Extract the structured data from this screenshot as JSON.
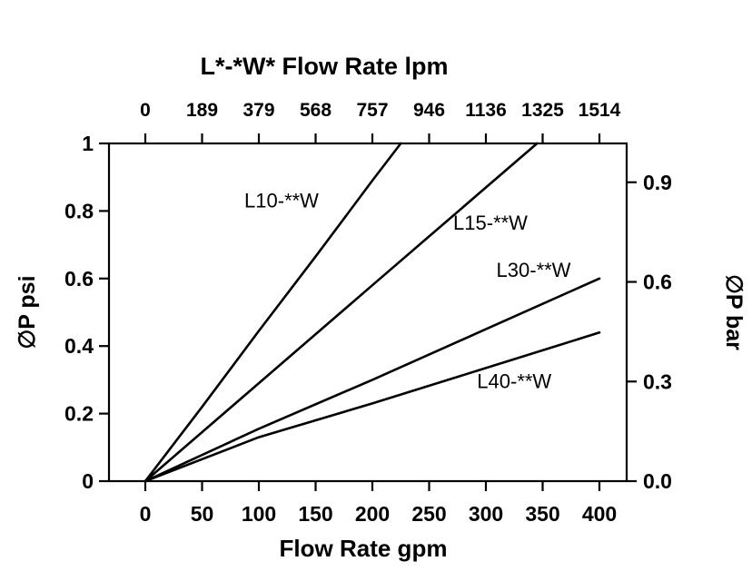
{
  "page": {
    "background": "#ffffff"
  },
  "chart_data": {
    "type": "line",
    "title": "L*-*W* Flow Rate lpm",
    "line_color": "#000000",
    "grid": false,
    "top_axis": {
      "unit": "lpm",
      "ticks": [
        "0",
        "189",
        "379",
        "568",
        "757",
        "946",
        "1136",
        "1325",
        "1514"
      ]
    },
    "bottom_axis": {
      "label": "Flow Rate gpm",
      "min": 0,
      "max": 400,
      "ticks": [
        "0",
        "50",
        "100",
        "150",
        "200",
        "250",
        "300",
        "350",
        "400"
      ],
      "tick_values": [
        0,
        50,
        100,
        150,
        200,
        250,
        300,
        350,
        400
      ]
    },
    "left_axis": {
      "label": "∅P psi",
      "min": 0,
      "max": 1,
      "ticks": [
        "0",
        "0.2",
        "0.4",
        "0.6",
        "0.8",
        "1"
      ],
      "tick_values": [
        0,
        0.2,
        0.4,
        0.6,
        0.8,
        1
      ]
    },
    "right_axis": {
      "label": "∅P bar",
      "ticks": [
        {
          "label": "0.9",
          "psi": 0.885
        },
        {
          "label": "0.6",
          "psi": 0.59
        },
        {
          "label": "0.3",
          "psi": 0.295
        },
        {
          "label": "0.0",
          "psi": 0
        }
      ]
    },
    "series": [
      {
        "name": "L10-**W",
        "points": [
          [
            0,
            0
          ],
          [
            50,
            0.22
          ],
          [
            100,
            0.445
          ],
          [
            150,
            0.665
          ],
          [
            200,
            0.89
          ],
          [
            225,
            1.0
          ]
        ],
        "label_at": [
          120,
          0.81
        ]
      },
      {
        "name": "L15-**W",
        "points": [
          [
            0,
            0
          ],
          [
            100,
            0.29
          ],
          [
            200,
            0.58
          ],
          [
            345,
            1.0
          ]
        ],
        "label_at": [
          304,
          0.745
        ]
      },
      {
        "name": "L30-**W",
        "points": [
          [
            0,
            0
          ],
          [
            100,
            0.155
          ],
          [
            200,
            0.3
          ],
          [
            300,
            0.45
          ],
          [
            400,
            0.6
          ]
        ],
        "label_at": [
          342,
          0.605
        ]
      },
      {
        "name": "L40-**W",
        "points": [
          [
            0,
            0
          ],
          [
            100,
            0.13
          ],
          [
            200,
            0.23
          ],
          [
            300,
            0.335
          ],
          [
            400,
            0.44
          ]
        ],
        "label_at": [
          325,
          0.275
        ]
      }
    ]
  }
}
